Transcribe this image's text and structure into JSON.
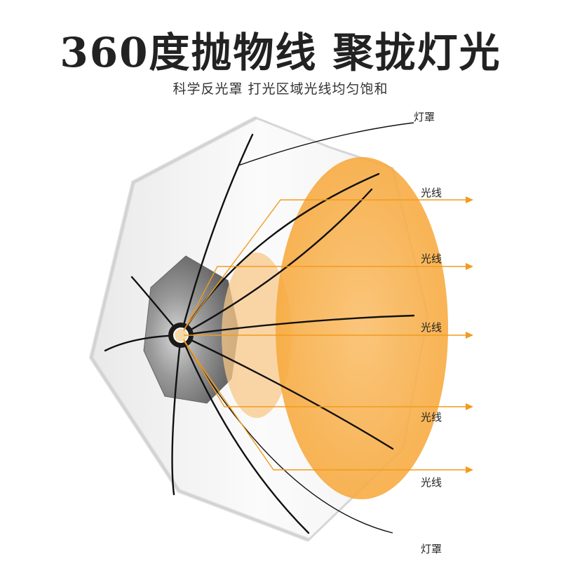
{
  "headline": "360度抛物线 聚拢灯光",
  "subheadline": "科学反光罩 打光区域光线均匀饱和",
  "labels": {
    "shade_top": "灯罩",
    "shade_bottom": "灯罩",
    "rays": [
      "光线",
      "光线",
      "光线",
      "光线",
      "光线"
    ]
  },
  "colors": {
    "light_glow": "#f9a93a",
    "arrow": "#f29b1d",
    "frame": "#111111",
    "diffuser": "#f4f4f4"
  },
  "icons": [
    "umbrella-softbox-illustration",
    "arrow-right-icon"
  ]
}
